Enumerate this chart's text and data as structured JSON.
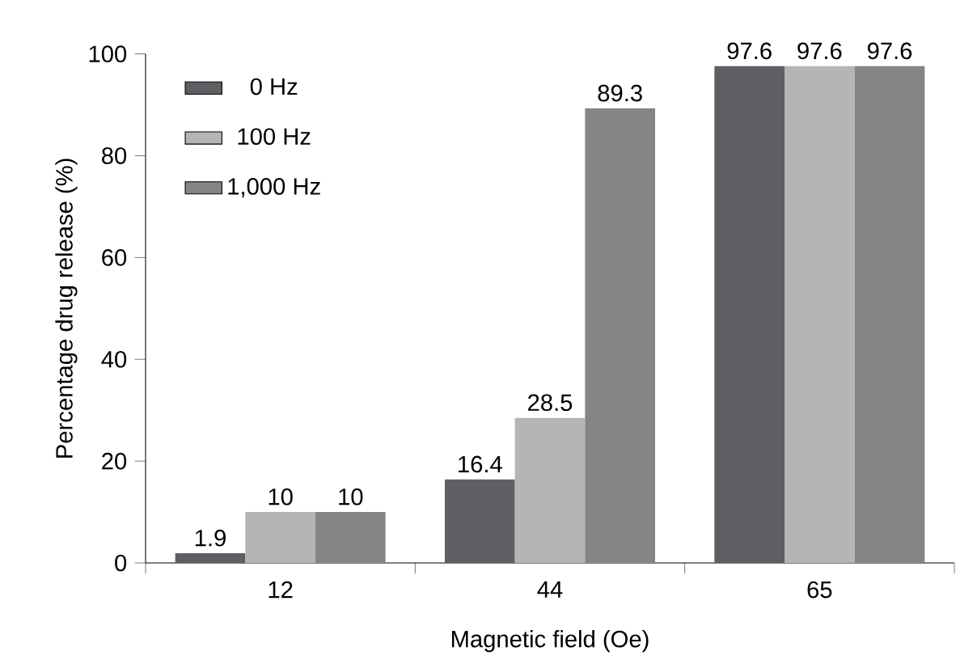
{
  "chart_data": {
    "type": "bar",
    "xlabel": "Magnetic field (Oe)",
    "ylabel": "Percentage drug release (%)",
    "categories": [
      "12",
      "44",
      "65"
    ],
    "series": [
      {
        "name": "0 Hz",
        "color": "#5f5f63",
        "values": [
          1.9,
          16.4,
          97.6
        ]
      },
      {
        "name": "100 Hz",
        "color": "#b5b5b7",
        "values": [
          10,
          28.5,
          97.6
        ]
      },
      {
        "name": "1,000 Hz",
        "color": "#858588",
        "values": [
          10,
          89.3,
          97.6
        ]
      }
    ],
    "ylim": [
      0,
      100
    ],
    "yticks": [
      0,
      20,
      40,
      60,
      80,
      100
    ],
    "data_labels": true,
    "grid": false,
    "legend": "top left"
  }
}
